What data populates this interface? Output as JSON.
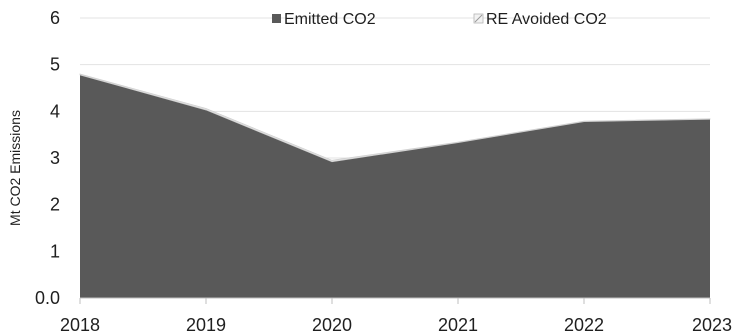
{
  "chart_data": {
    "type": "area",
    "x": [
      "2018",
      "2019",
      "2020",
      "2021",
      "2022",
      "2023"
    ],
    "series": [
      {
        "name": "Emitted CO2",
        "values": [
          4.78,
          4.03,
          2.92,
          3.33,
          3.78,
          3.83
        ],
        "color": "#595959"
      },
      {
        "name": "RE Avoided CO2",
        "values": [
          0.02,
          0.03,
          0.03,
          0.01,
          0.01,
          0.01
        ],
        "color": "#e6e6e6"
      }
    ],
    "ylabel": "Mt CO2 Emissions",
    "ylim": [
      0,
      6
    ],
    "yticks": [
      "0.0",
      "1",
      "2",
      "3",
      "4",
      "5",
      "6"
    ],
    "grid": true,
    "legend_position": "top"
  }
}
